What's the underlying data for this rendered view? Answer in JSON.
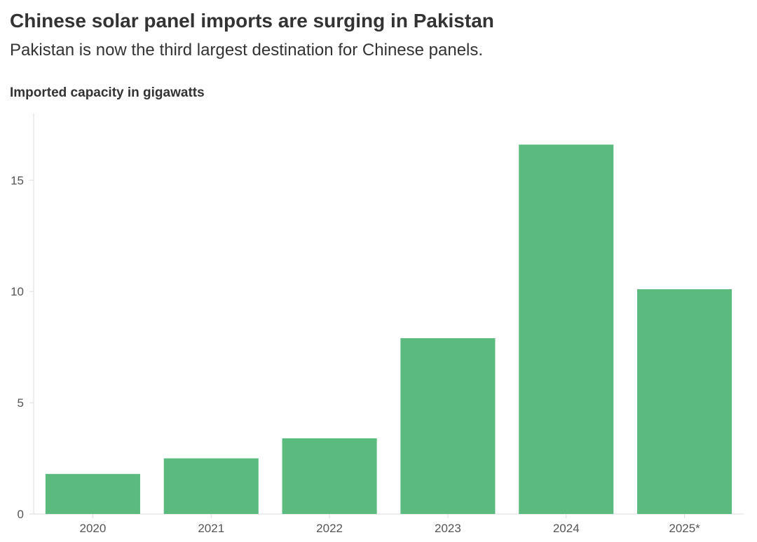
{
  "title": "Chinese solar panel imports are surging in Pakistan",
  "subtitle": "Pakistan is now the third largest destination for Chinese panels.",
  "chart_data": {
    "type": "bar",
    "title": "Chinese solar panel imports are surging in Pakistan",
    "subtitle": "Pakistan is now the third largest destination for Chinese panels.",
    "xlabel": "",
    "ylabel": "Imported capacity in gigawatts",
    "categories": [
      "2020",
      "2021",
      "2022",
      "2023",
      "2024",
      "2025*"
    ],
    "values": [
      1.8,
      2.5,
      3.4,
      7.9,
      16.6,
      10.1
    ],
    "ylim": [
      0,
      18
    ],
    "yticks": [
      0,
      5,
      10,
      15
    ],
    "grid": false,
    "legend": "none",
    "bar_color": "#5bba7d",
    "axis_color": "#dddddd",
    "text_color": "#333333"
  }
}
